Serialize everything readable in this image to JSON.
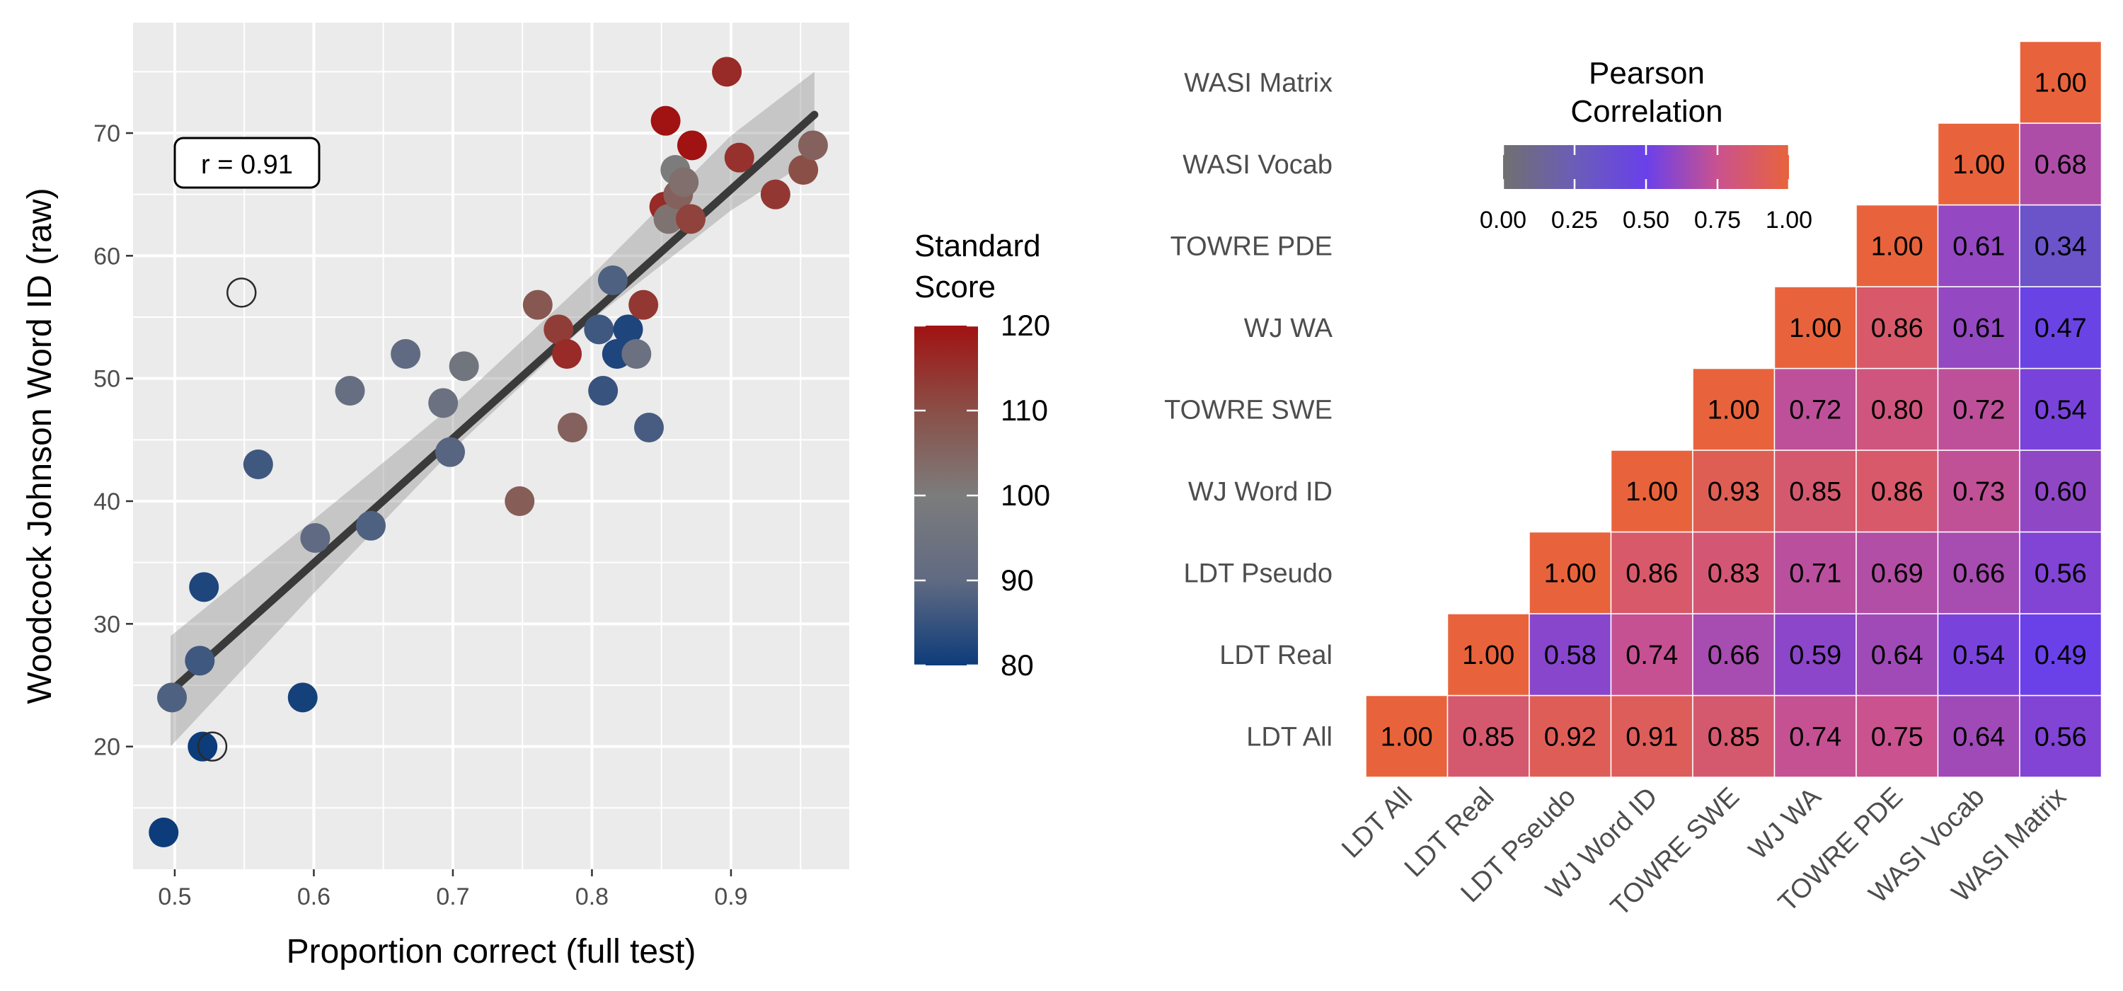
{
  "chart_data": [
    {
      "type": "scatter",
      "xlabel": "Proportion correct (full test)",
      "ylabel": "Woodcock Johnson Word ID (raw)",
      "xlim": [
        0.47,
        0.985
      ],
      "ylim": [
        10,
        79
      ],
      "x_ticks": [
        0.5,
        0.6,
        0.7,
        0.8,
        0.9
      ],
      "x_tick_labels": [
        "0.5",
        "0.6",
        "0.7",
        "0.8",
        "0.9"
      ],
      "y_ticks": [
        20,
        30,
        40,
        50,
        60,
        70
      ],
      "y_tick_labels": [
        "20",
        "30",
        "40",
        "50",
        "60",
        "70"
      ],
      "grid": true,
      "annotation": "r = 0.91",
      "fit_line": {
        "x": [
          0.497,
          0.96
        ],
        "y": [
          24.5,
          71.5
        ]
      },
      "confidence_band": {
        "x": [
          0.497,
          0.6,
          0.7,
          0.8,
          0.9,
          0.96
        ],
        "lower": [
          20.0,
          32.5,
          44.2,
          54.8,
          63.7,
          68.0
        ],
        "upper": [
          29.0,
          38.5,
          47.8,
          58.4,
          69.8,
          75.0
        ]
      },
      "colorbar": {
        "title": [
          "Standard",
          "Score"
        ],
        "min": 80,
        "max": 120,
        "ticks": [
          80,
          90,
          100,
          110,
          120
        ],
        "tick_labels": [
          "80",
          "90",
          "100",
          "110",
          "120"
        ],
        "colors": [
          "#0d3c7a",
          "#606a82",
          "#7c7c7c",
          "#8a4f47",
          "#a11212"
        ]
      },
      "points": [
        {
          "x": 0.492,
          "y": 13,
          "score": 80
        },
        {
          "x": 0.498,
          "y": 24,
          "score": 88
        },
        {
          "x": 0.518,
          "y": 27,
          "score": 86
        },
        {
          "x": 0.521,
          "y": 33,
          "score": 82
        },
        {
          "x": 0.52,
          "y": 20,
          "score": 80
        },
        {
          "x": 0.527,
          "y": 20,
          "score": null
        },
        {
          "x": 0.548,
          "y": 57,
          "score": null
        },
        {
          "x": 0.56,
          "y": 43,
          "score": 86
        },
        {
          "x": 0.592,
          "y": 24,
          "score": 81
        },
        {
          "x": 0.601,
          "y": 37,
          "score": 90
        },
        {
          "x": 0.626,
          "y": 49,
          "score": 92
        },
        {
          "x": 0.641,
          "y": 38,
          "score": 88
        },
        {
          "x": 0.666,
          "y": 52,
          "score": 90
        },
        {
          "x": 0.693,
          "y": 48,
          "score": 94
        },
        {
          "x": 0.698,
          "y": 44,
          "score": 89
        },
        {
          "x": 0.708,
          "y": 51,
          "score": 96
        },
        {
          "x": 0.748,
          "y": 40,
          "score": 107
        },
        {
          "x": 0.761,
          "y": 56,
          "score": 108
        },
        {
          "x": 0.776,
          "y": 54,
          "score": 113
        },
        {
          "x": 0.782,
          "y": 52,
          "score": 116
        },
        {
          "x": 0.786,
          "y": 46,
          "score": 106
        },
        {
          "x": 0.805,
          "y": 54,
          "score": 86
        },
        {
          "x": 0.808,
          "y": 49,
          "score": 85
        },
        {
          "x": 0.815,
          "y": 58,
          "score": 88
        },
        {
          "x": 0.818,
          "y": 52,
          "score": 82
        },
        {
          "x": 0.826,
          "y": 54,
          "score": 82
        },
        {
          "x": 0.832,
          "y": 52,
          "score": 94
        },
        {
          "x": 0.837,
          "y": 56,
          "score": 114
        },
        {
          "x": 0.841,
          "y": 46,
          "score": 87
        },
        {
          "x": 0.852,
          "y": 64,
          "score": 116
        },
        {
          "x": 0.855,
          "y": 63,
          "score": 102
        },
        {
          "x": 0.853,
          "y": 71,
          "score": 120
        },
        {
          "x": 0.86,
          "y": 67,
          "score": 100
        },
        {
          "x": 0.862,
          "y": 65,
          "score": 106
        },
        {
          "x": 0.866,
          "y": 66,
          "score": 103
        },
        {
          "x": 0.871,
          "y": 63,
          "score": 112
        },
        {
          "x": 0.872,
          "y": 69,
          "score": 120
        },
        {
          "x": 0.897,
          "y": 75,
          "score": 116
        },
        {
          "x": 0.906,
          "y": 68,
          "score": 115
        },
        {
          "x": 0.932,
          "y": 65,
          "score": 114
        },
        {
          "x": 0.952,
          "y": 67,
          "score": 110
        },
        {
          "x": 0.959,
          "y": 69,
          "score": 106
        }
      ]
    },
    {
      "type": "heatmap",
      "variables": [
        "LDT All",
        "LDT Real",
        "LDT Pseudo",
        "WJ Word ID",
        "TOWRE SWE",
        "WJ WA",
        "TOWRE PDE",
        "WASI Vocab",
        "WASI Matrix"
      ],
      "cells": [
        {
          "row": 0,
          "col": 0,
          "value": 1.0,
          "label": "1.00"
        },
        {
          "row": 0,
          "col": 1,
          "value": 0.85,
          "label": "0.85"
        },
        {
          "row": 0,
          "col": 2,
          "value": 0.92,
          "label": "0.92"
        },
        {
          "row": 0,
          "col": 3,
          "value": 0.91,
          "label": "0.91"
        },
        {
          "row": 0,
          "col": 4,
          "value": 0.85,
          "label": "0.85"
        },
        {
          "row": 0,
          "col": 5,
          "value": 0.74,
          "label": "0.74"
        },
        {
          "row": 0,
          "col": 6,
          "value": 0.75,
          "label": "0.75"
        },
        {
          "row": 0,
          "col": 7,
          "value": 0.64,
          "label": "0.64"
        },
        {
          "row": 0,
          "col": 8,
          "value": 0.56,
          "label": "0.56"
        },
        {
          "row": 1,
          "col": 1,
          "value": 1.0,
          "label": "1.00"
        },
        {
          "row": 1,
          "col": 2,
          "value": 0.58,
          "label": "0.58"
        },
        {
          "row": 1,
          "col": 3,
          "value": 0.74,
          "label": "0.74"
        },
        {
          "row": 1,
          "col": 4,
          "value": 0.66,
          "label": "0.66"
        },
        {
          "row": 1,
          "col": 5,
          "value": 0.59,
          "label": "0.59"
        },
        {
          "row": 1,
          "col": 6,
          "value": 0.64,
          "label": "0.64"
        },
        {
          "row": 1,
          "col": 7,
          "value": 0.54,
          "label": "0.54"
        },
        {
          "row": 1,
          "col": 8,
          "value": 0.49,
          "label": "0.49"
        },
        {
          "row": 2,
          "col": 2,
          "value": 1.0,
          "label": "1.00"
        },
        {
          "row": 2,
          "col": 3,
          "value": 0.86,
          "label": "0.86"
        },
        {
          "row": 2,
          "col": 4,
          "value": 0.83,
          "label": "0.83"
        },
        {
          "row": 2,
          "col": 5,
          "value": 0.71,
          "label": "0.71"
        },
        {
          "row": 2,
          "col": 6,
          "value": 0.69,
          "label": "0.69"
        },
        {
          "row": 2,
          "col": 7,
          "value": 0.66,
          "label": "0.66"
        },
        {
          "row": 2,
          "col": 8,
          "value": 0.56,
          "label": "0.56"
        },
        {
          "row": 3,
          "col": 3,
          "value": 1.0,
          "label": "1.00"
        },
        {
          "row": 3,
          "col": 4,
          "value": 0.93,
          "label": "0.93"
        },
        {
          "row": 3,
          "col": 5,
          "value": 0.85,
          "label": "0.85"
        },
        {
          "row": 3,
          "col": 6,
          "value": 0.86,
          "label": "0.86"
        },
        {
          "row": 3,
          "col": 7,
          "value": 0.73,
          "label": "0.73"
        },
        {
          "row": 3,
          "col": 8,
          "value": 0.6,
          "label": "0.60"
        },
        {
          "row": 4,
          "col": 4,
          "value": 1.0,
          "label": "1.00"
        },
        {
          "row": 4,
          "col": 5,
          "value": 0.72,
          "label": "0.72"
        },
        {
          "row": 4,
          "col": 6,
          "value": 0.8,
          "label": "0.80"
        },
        {
          "row": 4,
          "col": 7,
          "value": 0.72,
          "label": "0.72"
        },
        {
          "row": 4,
          "col": 8,
          "value": 0.54,
          "label": "0.54"
        },
        {
          "row": 5,
          "col": 5,
          "value": 1.0,
          "label": "1.00"
        },
        {
          "row": 5,
          "col": 6,
          "value": 0.86,
          "label": "0.86"
        },
        {
          "row": 5,
          "col": 7,
          "value": 0.61,
          "label": "0.61"
        },
        {
          "row": 5,
          "col": 8,
          "value": 0.47,
          "label": "0.47"
        },
        {
          "row": 6,
          "col": 6,
          "value": 1.0,
          "label": "1.00"
        },
        {
          "row": 6,
          "col": 7,
          "value": 0.61,
          "label": "0.61"
        },
        {
          "row": 6,
          "col": 8,
          "value": 0.34,
          "label": "0.34"
        },
        {
          "row": 7,
          "col": 7,
          "value": 1.0,
          "label": "1.00"
        },
        {
          "row": 7,
          "col": 8,
          "value": 0.68,
          "label": "0.68"
        },
        {
          "row": 8,
          "col": 8,
          "value": 1.0,
          "label": "1.00"
        }
      ],
      "legend": {
        "title": [
          "Pearson",
          "Correlation"
        ],
        "min": 0,
        "max": 1,
        "ticks": [
          0,
          0.25,
          0.5,
          0.75,
          1.0
        ],
        "tick_labels": [
          "0.00",
          "0.25",
          "0.50",
          "0.75",
          "1.00"
        ],
        "colors": [
          "#707070",
          "#6b5db8",
          "#6a40ea",
          "#c9528f",
          "#e8633c"
        ],
        "placement": "top-center"
      }
    }
  ]
}
